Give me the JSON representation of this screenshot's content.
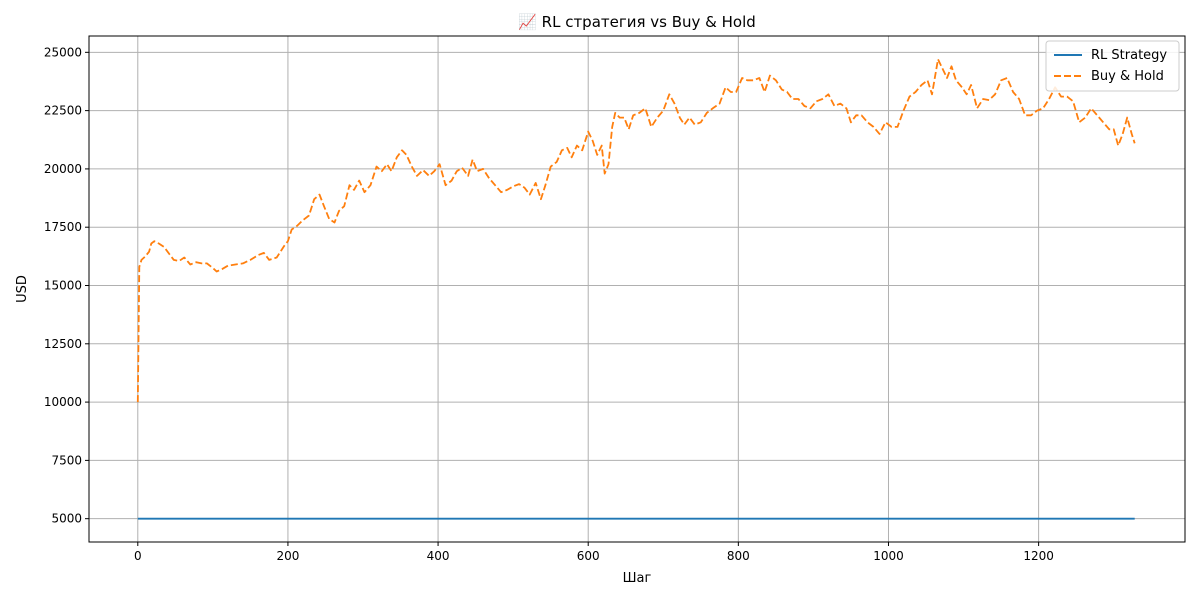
{
  "chart_data": {
    "type": "line",
    "title": "📈 RL стратегия vs Buy & Hold",
    "xlabel": "Шаг",
    "ylabel": "USD",
    "xlim": [
      -65,
      1395
    ],
    "ylim": [
      4000,
      25700
    ],
    "xticks": [
      0,
      200,
      400,
      600,
      800,
      1000,
      1200
    ],
    "yticks": [
      5000,
      7500,
      10000,
      12500,
      15000,
      17500,
      20000,
      22500,
      25000
    ],
    "grid": true,
    "legend_position": "top-right",
    "series": [
      {
        "name": "RL Strategy",
        "color": "#1f77b4",
        "style": "solid",
        "points": [
          [
            0,
            5000
          ],
          [
            1328,
            5000
          ]
        ]
      },
      {
        "name": "Buy & Hold",
        "color": "#ff7f0e",
        "style": "dashed",
        "points": [
          [
            0,
            10000
          ],
          [
            2,
            15800
          ],
          [
            5,
            16100
          ],
          [
            10,
            16250
          ],
          [
            15,
            16450
          ],
          [
            18,
            16800
          ],
          [
            22,
            16900
          ],
          [
            28,
            16800
          ],
          [
            35,
            16650
          ],
          [
            42,
            16350
          ],
          [
            48,
            16100
          ],
          [
            55,
            16050
          ],
          [
            62,
            16200
          ],
          [
            70,
            15900
          ],
          [
            78,
            16000
          ],
          [
            85,
            15950
          ],
          [
            92,
            15950
          ],
          [
            100,
            15750
          ],
          [
            105,
            15600
          ],
          [
            112,
            15700
          ],
          [
            120,
            15850
          ],
          [
            130,
            15900
          ],
          [
            140,
            15950
          ],
          [
            150,
            16100
          ],
          [
            160,
            16300
          ],
          [
            168,
            16400
          ],
          [
            175,
            16100
          ],
          [
            185,
            16200
          ],
          [
            195,
            16700
          ],
          [
            200,
            16900
          ],
          [
            205,
            17400
          ],
          [
            212,
            17550
          ],
          [
            220,
            17800
          ],
          [
            228,
            18000
          ],
          [
            235,
            18700
          ],
          [
            242,
            18900
          ],
          [
            248,
            18400
          ],
          [
            255,
            17850
          ],
          [
            262,
            17700
          ],
          [
            268,
            18200
          ],
          [
            275,
            18400
          ],
          [
            282,
            19300
          ],
          [
            288,
            19100
          ],
          [
            295,
            19500
          ],
          [
            302,
            19000
          ],
          [
            310,
            19300
          ],
          [
            318,
            20100
          ],
          [
            325,
            19900
          ],
          [
            332,
            20200
          ],
          [
            338,
            19900
          ],
          [
            345,
            20500
          ],
          [
            352,
            20800
          ],
          [
            358,
            20600
          ],
          [
            365,
            20100
          ],
          [
            372,
            19700
          ],
          [
            380,
            19950
          ],
          [
            388,
            19700
          ],
          [
            395,
            19900
          ],
          [
            402,
            20200
          ],
          [
            410,
            19300
          ],
          [
            418,
            19500
          ],
          [
            425,
            19900
          ],
          [
            432,
            20050
          ],
          [
            440,
            19700
          ],
          [
            446,
            20400
          ],
          [
            452,
            19900
          ],
          [
            460,
            20000
          ],
          [
            468,
            19600
          ],
          [
            476,
            19300
          ],
          [
            484,
            19000
          ],
          [
            492,
            19100
          ],
          [
            500,
            19250
          ],
          [
            508,
            19350
          ],
          [
            515,
            19200
          ],
          [
            522,
            18900
          ],
          [
            530,
            19400
          ],
          [
            537,
            18700
          ],
          [
            543,
            19300
          ],
          [
            550,
            20100
          ],
          [
            558,
            20300
          ],
          [
            565,
            20800
          ],
          [
            572,
            20900
          ],
          [
            578,
            20500
          ],
          [
            585,
            21000
          ],
          [
            592,
            20800
          ],
          [
            600,
            21600
          ],
          [
            606,
            21200
          ],
          [
            612,
            20600
          ],
          [
            618,
            21000
          ],
          [
            622,
            19800
          ],
          [
            627,
            20200
          ],
          [
            632,
            21800
          ],
          [
            636,
            22400
          ],
          [
            642,
            22200
          ],
          [
            648,
            22200
          ],
          [
            654,
            21700
          ],
          [
            660,
            22300
          ],
          [
            668,
            22400
          ],
          [
            676,
            22600
          ],
          [
            684,
            21800
          ],
          [
            692,
            22200
          ],
          [
            700,
            22500
          ],
          [
            708,
            23200
          ],
          [
            715,
            22800
          ],
          [
            722,
            22200
          ],
          [
            728,
            21900
          ],
          [
            735,
            22200
          ],
          [
            742,
            21900
          ],
          [
            750,
            22000
          ],
          [
            758,
            22400
          ],
          [
            766,
            22600
          ],
          [
            775,
            22800
          ],
          [
            783,
            23500
          ],
          [
            790,
            23300
          ],
          [
            797,
            23300
          ],
          [
            805,
            23900
          ],
          [
            812,
            23800
          ],
          [
            820,
            23800
          ],
          [
            828,
            23900
          ],
          [
            835,
            23300
          ],
          [
            842,
            24000
          ],
          [
            850,
            23800
          ],
          [
            858,
            23400
          ],
          [
            865,
            23300
          ],
          [
            872,
            23000
          ],
          [
            880,
            23000
          ],
          [
            888,
            22700
          ],
          [
            896,
            22600
          ],
          [
            904,
            22900
          ],
          [
            912,
            23000
          ],
          [
            920,
            23200
          ],
          [
            928,
            22700
          ],
          [
            936,
            22800
          ],
          [
            944,
            22600
          ],
          [
            950,
            22000
          ],
          [
            957,
            22300
          ],
          [
            964,
            22300
          ],
          [
            972,
            22000
          ],
          [
            980,
            21800
          ],
          [
            988,
            21500
          ],
          [
            996,
            22000
          ],
          [
            1004,
            21800
          ],
          [
            1012,
            21800
          ],
          [
            1020,
            22500
          ],
          [
            1028,
            23100
          ],
          [
            1036,
            23300
          ],
          [
            1044,
            23600
          ],
          [
            1052,
            23800
          ],
          [
            1058,
            23200
          ],
          [
            1066,
            24700
          ],
          [
            1072,
            24300
          ],
          [
            1078,
            23900
          ],
          [
            1084,
            24400
          ],
          [
            1090,
            23800
          ],
          [
            1098,
            23500
          ],
          [
            1104,
            23200
          ],
          [
            1110,
            23600
          ],
          [
            1118,
            22600
          ],
          [
            1126,
            23000
          ],
          [
            1134,
            22950
          ],
          [
            1142,
            23200
          ],
          [
            1150,
            23800
          ],
          [
            1158,
            23900
          ],
          [
            1166,
            23300
          ],
          [
            1174,
            23000
          ],
          [
            1182,
            22300
          ],
          [
            1190,
            22300
          ],
          [
            1198,
            22500
          ],
          [
            1206,
            22600
          ],
          [
            1214,
            23000
          ],
          [
            1222,
            23500
          ],
          [
            1230,
            23100
          ],
          [
            1238,
            23100
          ],
          [
            1246,
            22900
          ],
          [
            1254,
            22000
          ],
          [
            1262,
            22200
          ],
          [
            1270,
            22600
          ],
          [
            1278,
            22300
          ],
          [
            1286,
            22000
          ],
          [
            1294,
            21700
          ],
          [
            1300,
            21700
          ],
          [
            1306,
            21000
          ],
          [
            1312,
            21500
          ],
          [
            1318,
            22200
          ],
          [
            1324,
            21500
          ],
          [
            1328,
            21100
          ]
        ]
      }
    ]
  }
}
